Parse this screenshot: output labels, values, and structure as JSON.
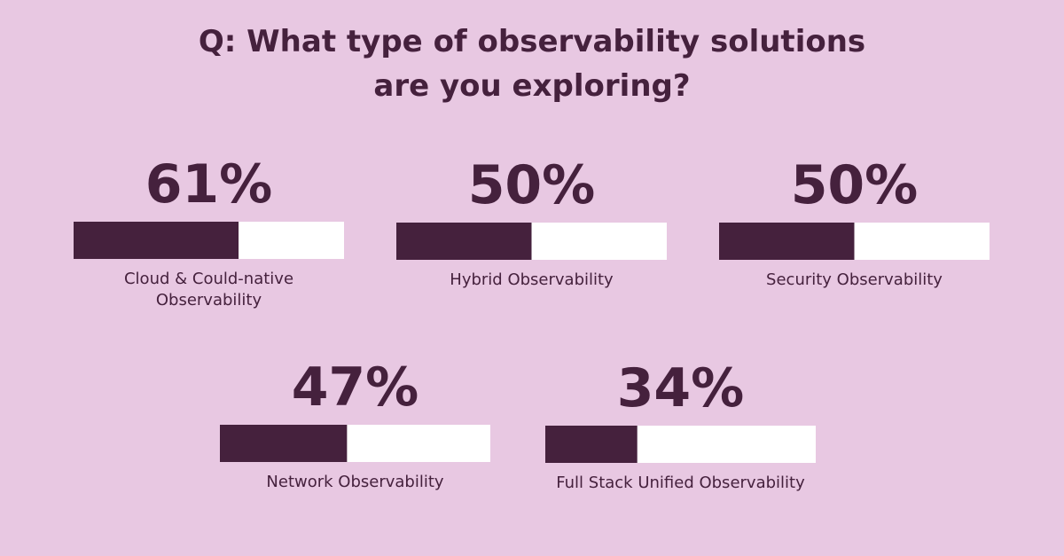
{
  "chart_data": {
    "type": "progress-bars",
    "title": [
      "Q: What type of observability solutions",
      "are you exploring?"
    ],
    "categories": [
      "Cloud & Could-native Observability",
      "Hybrid Observability",
      "Security Observability",
      "Network Observability",
      "Full Stack Unified Observability"
    ],
    "values": [
      61,
      50,
      50,
      47,
      34
    ],
    "value_labels": [
      "61%",
      "50%",
      "50%",
      "47%",
      "34%"
    ],
    "xlim": [
      0,
      100
    ],
    "color": "#45213d",
    "track_color": "#ffffff"
  }
}
